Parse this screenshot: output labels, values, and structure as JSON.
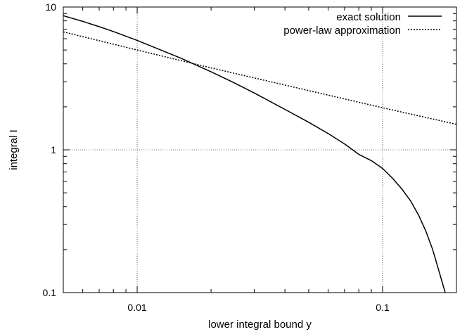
{
  "chart_data": {
    "type": "line",
    "title": "",
    "xlabel": "lower integral bound y",
    "ylabel": "integral I",
    "xscale": "log",
    "yscale": "log",
    "xlim": [
      0.005,
      0.2
    ],
    "ylim": [
      0.1,
      10
    ],
    "grid": "dotted at major decades",
    "legend_position": "top-right",
    "x_ticks": [
      {
        "value": 0.01,
        "label": "0.01"
      },
      {
        "value": 0.1,
        "label": "0.1"
      }
    ],
    "y_ticks": [
      {
        "value": 0.1,
        "label": "0.1"
      },
      {
        "value": 1,
        "label": "1"
      },
      {
        "value": 10,
        "label": "10"
      }
    ],
    "series": [
      {
        "name": "exact solution",
        "style": "solid",
        "color": "#000000",
        "x": [
          0.005,
          0.006,
          0.007,
          0.008,
          0.01,
          0.012,
          0.015,
          0.02,
          0.025,
          0.03,
          0.04,
          0.05,
          0.06,
          0.07,
          0.08,
          0.09,
          0.1,
          0.11,
          0.12,
          0.13,
          0.14,
          0.15,
          0.16,
          0.17,
          0.18
        ],
        "y": [
          8.7,
          7.93,
          7.29,
          6.74,
          5.84,
          5.14,
          4.4,
          3.52,
          2.93,
          2.5,
          1.92,
          1.56,
          1.3,
          1.1,
          0.93,
          0.84,
          0.74,
          0.63,
          0.53,
          0.44,
          0.35,
          0.27,
          0.2,
          0.14,
          0.1
        ]
      },
      {
        "name": "power-law approximation",
        "style": "dotted",
        "color": "#000000",
        "x": [
          0.005,
          0.01,
          0.02,
          0.05,
          0.1,
          0.2
        ],
        "y": [
          6.7,
          5.0,
          3.75,
          2.6,
          1.97,
          1.51
        ]
      }
    ]
  }
}
